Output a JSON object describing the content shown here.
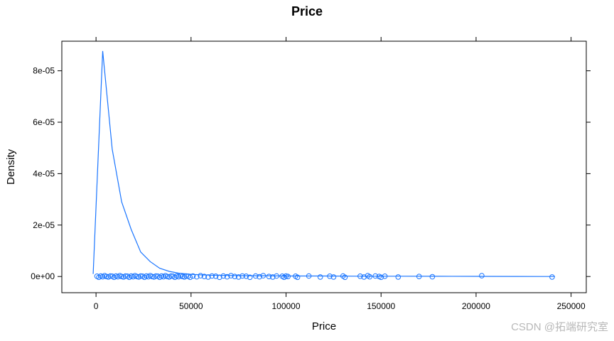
{
  "chart_data": {
    "type": "line",
    "title": "Price",
    "xlabel": "Price",
    "ylabel": "Density",
    "xlim": [
      -18000,
      258000
    ],
    "ylim": [
      -6.3e-06,
      9.15e-05
    ],
    "xticks": [
      0,
      50000,
      100000,
      150000,
      200000,
      250000
    ],
    "xtick_labels": [
      "0",
      "50000",
      "100000",
      "150000",
      "200000",
      "250000"
    ],
    "yticks": [
      0,
      2e-05,
      4e-05,
      6e-05,
      8e-05
    ],
    "ytick_labels": [
      "0e+00",
      "2e-05",
      "4e-05",
      "6e-05",
      "8e-05"
    ],
    "grid": false,
    "color": "#1a75ff",
    "density_curve": {
      "x": [
        -1500,
        3500,
        8500,
        13500,
        18500,
        23500,
        28500,
        33500,
        38500,
        43500,
        48500,
        53500,
        60000,
        70000,
        80000,
        90000,
        100000,
        120000,
        140000,
        160000,
        180000,
        200000,
        220000,
        241500
      ],
      "y": [
        1e-06,
        8.77e-05,
        4.95e-05,
        2.9e-05,
        1.83e-05,
        9.5e-06,
        5.8e-06,
        3.2e-06,
        2e-06,
        1.3e-06,
        9e-07,
        7e-07,
        5e-07,
        4e-07,
        3e-07,
        3e-07,
        2e-07,
        2e-07,
        1e-07,
        1e-07,
        8e-08,
        5e-08,
        2e-08,
        1e-08
      ]
    },
    "rug_points": {
      "x": [
        500,
        1500,
        2500,
        3500,
        4500,
        5500,
        6500,
        7500,
        8500,
        9500,
        10500,
        11500,
        12500,
        13500,
        14500,
        15500,
        16500,
        17500,
        18500,
        19500,
        20500,
        21500,
        22500,
        23500,
        24500,
        25500,
        26500,
        27500,
        28500,
        29500,
        30500,
        31500,
        32500,
        33500,
        34500,
        35500,
        36500,
        37500,
        38500,
        39500,
        40500,
        41500,
        42500,
        43500,
        44500,
        45500,
        46500,
        47500,
        48500,
        49500,
        51000,
        53000,
        55000,
        57000,
        59000,
        61000,
        63000,
        65000,
        67000,
        69000,
        71000,
        73000,
        75000,
        77000,
        79000,
        81000,
        84000,
        86000,
        88000,
        91000,
        93000,
        95000,
        98000,
        99000,
        100000,
        101000,
        105000,
        106000,
        112000,
        118000,
        123000,
        125000,
        130000,
        131000,
        139000,
        141000,
        143000,
        144000,
        147000,
        149000,
        150000,
        152000,
        159000,
        170000,
        177000,
        203000,
        240000
      ],
      "y": [
        1e-07,
        -3e-07,
        2e-07,
        -1e-07,
        3e-07,
        0.0,
        -2e-07,
        2e-07,
        1e-07,
        -3e-07,
        2e-07,
        -1e-07,
        3e-07,
        0.0,
        -2e-07,
        2e-07,
        1e-07,
        -3e-07,
        2e-07,
        -1e-07,
        3e-07,
        0.0,
        -2e-07,
        2e-07,
        1e-07,
        -3e-07,
        2e-07,
        -1e-07,
        3e-07,
        0.0,
        -2e-07,
        2e-07,
        1e-07,
        -3e-07,
        2e-07,
        -1e-07,
        3e-07,
        0.0,
        -2e-07,
        2e-07,
        1e-07,
        -3e-07,
        2e-07,
        -1e-07,
        3e-07,
        0.0,
        -2e-07,
        2e-07,
        1e-07,
        -3e-07,
        2e-07,
        -1e-07,
        3e-07,
        0.0,
        -2e-07,
        2e-07,
        1e-07,
        -3e-07,
        2e-07,
        -1e-07,
        3e-07,
        0.0,
        -2e-07,
        2e-07,
        1e-07,
        -3e-07,
        2e-07,
        -1e-07,
        3e-07,
        0.0,
        -2e-07,
        2e-07,
        1e-07,
        -3e-07,
        2e-07,
        0.0,
        1e-07,
        -3e-07,
        2e-07,
        -2e-07,
        1e-07,
        -2e-07,
        2e-07,
        -3e-07,
        1e-07,
        -2e-07,
        3e-07,
        -1e-07,
        2e-07,
        0.0,
        -3e-07,
        1e-07,
        -2e-07,
        0.0,
        -1e-07,
        3e-07,
        -2e-07
      ]
    }
  },
  "watermark": "CSDN @拓端研究室"
}
